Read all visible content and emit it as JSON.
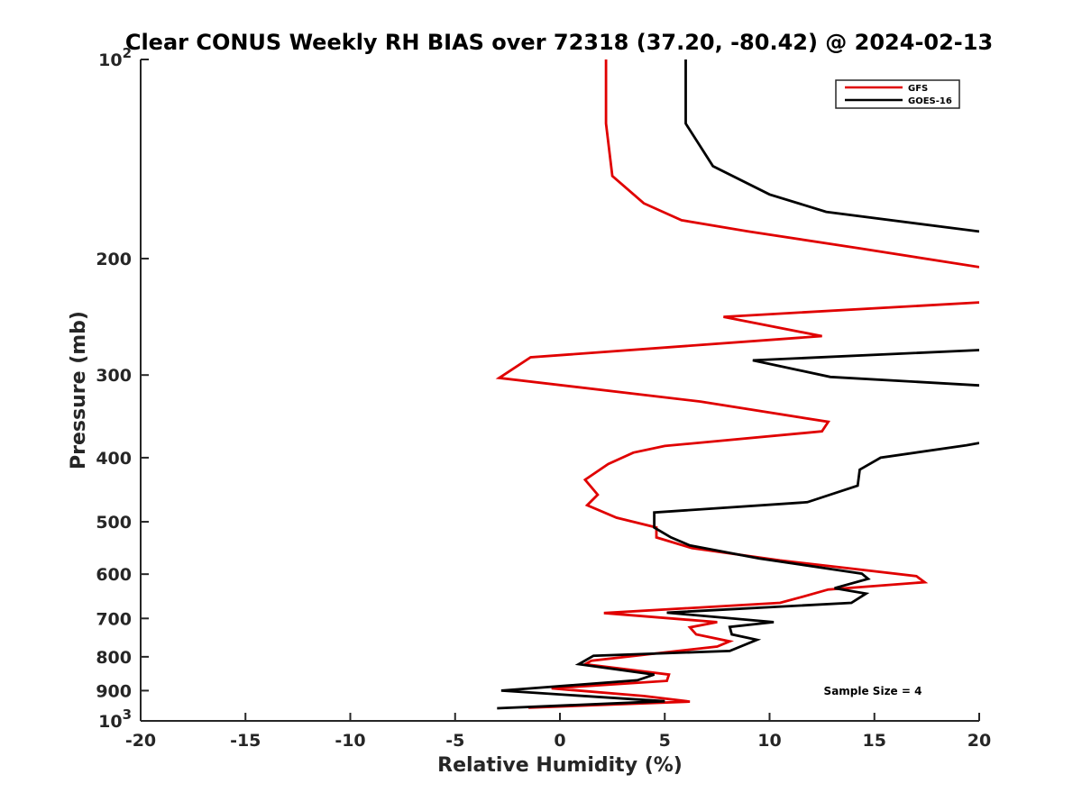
{
  "chart_data": {
    "type": "line",
    "title": "Clear CONUS Weekly RH BIAS over 72318 (37.20, -80.42) @ 2024-02-13",
    "xlabel": "Relative Humidity (%)",
    "ylabel": "Pressure (mb)",
    "xlim": [
      -20,
      20
    ],
    "ylim": [
      100,
      1000
    ],
    "yscale": "log",
    "y_reversed": true,
    "grid": false,
    "legend_position": "top-right",
    "xticks": [
      "-20",
      "-15",
      "-10",
      "-5",
      "0",
      "5",
      "10",
      "15",
      "20"
    ],
    "xtick_values": [
      -20,
      -15,
      -10,
      -5,
      0,
      5,
      10,
      15,
      20
    ],
    "yticks": [
      {
        "value": 100,
        "base": "10",
        "exp": "2"
      },
      {
        "value": 200,
        "label": "200"
      },
      {
        "value": 300,
        "label": "300"
      },
      {
        "value": 400,
        "label": "400"
      },
      {
        "value": 500,
        "label": "500"
      },
      {
        "value": 600,
        "label": "600"
      },
      {
        "value": 700,
        "label": "700"
      },
      {
        "value": 800,
        "label": "800"
      },
      {
        "value": 900,
        "label": "900"
      },
      {
        "value": 1000,
        "base": "10",
        "exp": "3"
      }
    ],
    "annotation": "Sample Size = 4",
    "series": [
      {
        "name": "GFS",
        "color": "#e00000",
        "points": [
          [
            2.2,
            100
          ],
          [
            2.2,
            125
          ],
          [
            2.5,
            150
          ],
          [
            4,
            165
          ],
          [
            5.8,
            175
          ],
          [
            9,
            182
          ],
          [
            14.3,
            193
          ],
          [
            20,
            206
          ],
          null,
          [
            20,
            233
          ],
          [
            7.8,
            245
          ],
          [
            12.5,
            262
          ],
          [
            -1.4,
            282
          ],
          [
            -2.9,
            303
          ],
          [
            6.7,
            329
          ],
          [
            12.8,
            353
          ],
          [
            12.5,
            365
          ],
          [
            5,
            384
          ],
          [
            3.5,
            393
          ],
          [
            2.3,
            409
          ],
          [
            1.2,
            432
          ],
          [
            1.8,
            455
          ],
          [
            1.3,
            472
          ],
          [
            2.7,
            493
          ],
          [
            4.6,
            510
          ],
          [
            4.6,
            528
          ],
          [
            6.3,
            548
          ],
          [
            10.5,
            572
          ],
          [
            17.0,
            604
          ],
          [
            17.4,
            617
          ],
          [
            12.8,
            633
          ],
          [
            11.5,
            650
          ],
          [
            10.5,
            663
          ],
          [
            2.1,
            687
          ],
          [
            7.5,
            709
          ],
          [
            6.2,
            722
          ],
          [
            6.5,
            740
          ],
          [
            8.1,
            758
          ],
          [
            7.5,
            772
          ],
          [
            1.5,
            811
          ],
          [
            1.2,
            821
          ],
          [
            5.2,
            851
          ],
          [
            5.1,
            870
          ],
          [
            -0.4,
            893
          ],
          [
            4,
            917
          ],
          [
            6.2,
            935
          ],
          [
            -1.5,
            955
          ]
        ]
      },
      {
        "name": "GOES-16",
        "color": "#000000",
        "points": [
          [
            6,
            100
          ],
          [
            6,
            125
          ],
          [
            7.3,
            145
          ],
          [
            10,
            160
          ],
          [
            12.7,
            170
          ],
          [
            20,
            182
          ],
          null,
          [
            20,
            275
          ],
          [
            9.2,
            285
          ],
          [
            12.9,
            302
          ],
          [
            20,
            311
          ],
          null,
          [
            20,
            380
          ],
          [
            19.4,
            383
          ],
          [
            15.3,
            400
          ],
          [
            14.3,
            417
          ],
          [
            14.2,
            441
          ],
          [
            11.8,
            467
          ],
          [
            4.5,
            484
          ],
          [
            4.5,
            510
          ],
          [
            5.3,
            528
          ],
          [
            6.2,
            543
          ],
          [
            9.5,
            568
          ],
          [
            14.4,
            599
          ],
          [
            14.7,
            610
          ],
          [
            13.1,
            630
          ],
          [
            14.6,
            642
          ],
          [
            13.9,
            663
          ],
          [
            5.1,
            686
          ],
          [
            10.2,
            709
          ],
          [
            8.1,
            721
          ],
          [
            8.2,
            740
          ],
          [
            9.4,
            754
          ],
          [
            8.1,
            784
          ],
          [
            1.6,
            797
          ],
          [
            0.9,
            821
          ],
          [
            4.5,
            851
          ],
          [
            3.7,
            868
          ],
          [
            -2.8,
            900
          ],
          [
            5.0,
            934
          ],
          [
            -3.0,
            957
          ]
        ]
      }
    ]
  }
}
